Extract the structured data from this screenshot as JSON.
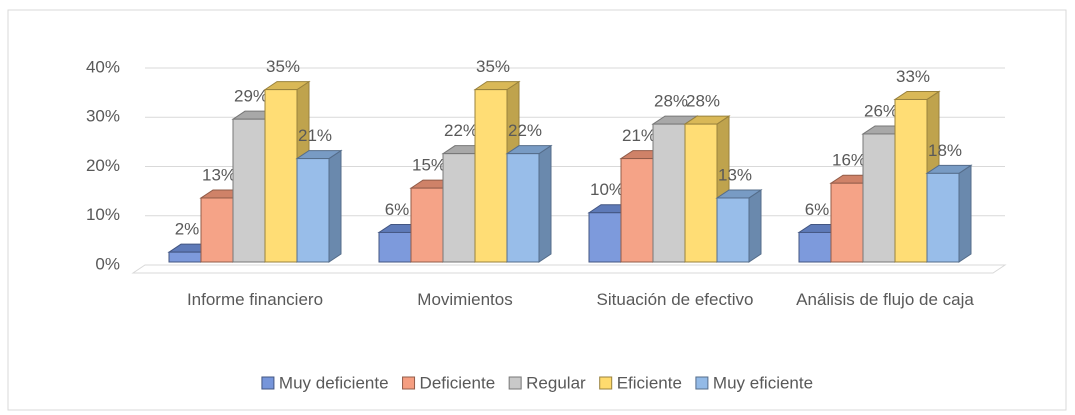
{
  "chart_data": {
    "type": "bar3d",
    "categories": [
      "Informe financiero",
      "Movimientos",
      "Situación de efectivo",
      "Análisis de flujo de caja"
    ],
    "series": [
      {
        "name": "Muy deficiente",
        "color": "#6f8fd8",
        "values": [
          2,
          6,
          10,
          6
        ],
        "value_labels": [
          "2%",
          "6%",
          "10%",
          "6%"
        ]
      },
      {
        "name": "Deficiente",
        "color": "#f4997a",
        "values": [
          13,
          15,
          21,
          16
        ],
        "value_labels": [
          "13%",
          "15%",
          "21%",
          "16%"
        ]
      },
      {
        "name": "Regular",
        "color": "#c6c6c6",
        "values": [
          29,
          22,
          28,
          26
        ],
        "value_labels": [
          "29%",
          "22%",
          "28%",
          "26%"
        ]
      },
      {
        "name": "Eficiente",
        "color": "#ffd966",
        "values": [
          35,
          35,
          28,
          33
        ],
        "value_labels": [
          "35%",
          "35%",
          "28%",
          "33%"
        ]
      },
      {
        "name": "Muy eficiente",
        "color": "#8db6e6",
        "values": [
          21,
          22,
          13,
          18
        ],
        "value_labels": [
          "21%",
          "22%",
          "13%",
          "18%"
        ]
      }
    ],
    "ylim": [
      0,
      40
    ],
    "yticks": [
      {
        "value": 0,
        "label": "0%"
      },
      {
        "value": 10,
        "label": "10%"
      },
      {
        "value": 20,
        "label": "20%"
      },
      {
        "value": 30,
        "label": "30%"
      },
      {
        "value": 40,
        "label": "40%"
      }
    ],
    "grid": true,
    "legend": "bottom"
  }
}
